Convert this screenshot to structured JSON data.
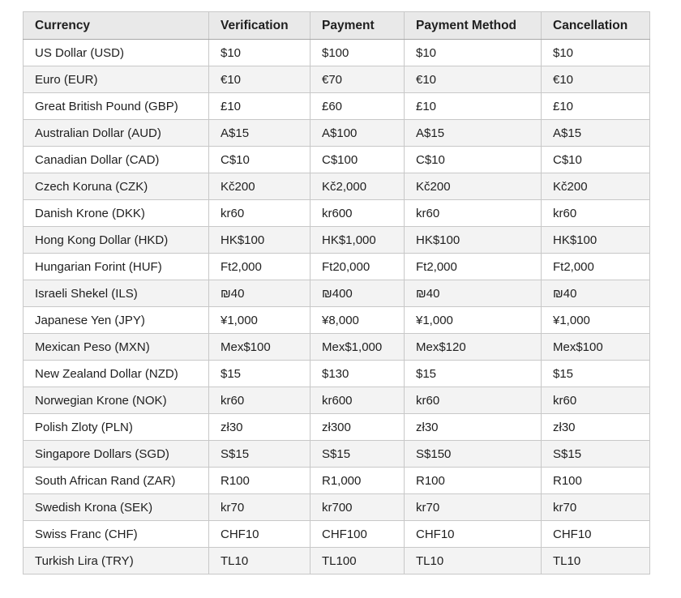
{
  "table": {
    "headers": [
      "Currency",
      "Verification",
      "Payment",
      "Payment Method",
      "Cancellation"
    ],
    "rows": [
      [
        "US Dollar (USD)",
        "$10",
        "$100",
        "$10",
        "$10"
      ],
      [
        "Euro (EUR)",
        "€10",
        "€70",
        "€10",
        "€10"
      ],
      [
        "Great British Pound (GBP)",
        "£10",
        "£60",
        "£10",
        "£10"
      ],
      [
        "Australian Dollar (AUD)",
        "A$15",
        "A$100",
        "A$15",
        "A$15"
      ],
      [
        "Canadian Dollar (CAD)",
        "C$10",
        "C$100",
        "C$10",
        "C$10"
      ],
      [
        "Czech Koruna (CZK)",
        "Kč200",
        "Kč2,000",
        "Kč200",
        "Kč200"
      ],
      [
        "Danish Krone (DKK)",
        "kr60",
        "kr600",
        "kr60",
        "kr60"
      ],
      [
        "Hong Kong Dollar (HKD)",
        "HK$100",
        "HK$1,000",
        "HK$100",
        "HK$100"
      ],
      [
        "Hungarian Forint (HUF)",
        "Ft2,000",
        "Ft20,000",
        "Ft2,000",
        "Ft2,000"
      ],
      [
        "Israeli Shekel (ILS)",
        "₪40",
        "₪400",
        "₪40",
        "₪40"
      ],
      [
        "Japanese Yen (JPY)",
        "¥1,000",
        "¥8,000",
        "¥1,000",
        "¥1,000"
      ],
      [
        "Mexican Peso (MXN)",
        "Mex$100",
        "Mex$1,000",
        "Mex$120",
        "Mex$100"
      ],
      [
        "New Zealand Dollar (NZD)",
        "$15",
        "$130",
        "$15",
        "$15"
      ],
      [
        "Norwegian Krone (NOK)",
        "kr60",
        "kr600",
        "kr60",
        "kr60"
      ],
      [
        "Polish Zloty (PLN)",
        "zł30",
        "zł300",
        "zł30",
        "zł30"
      ],
      [
        "Singapore Dollars (SGD)",
        "S$15",
        "S$15",
        "S$150",
        "S$15"
      ],
      [
        "South African Rand (ZAR)",
        "R100",
        "R1,000",
        "R100",
        "R100"
      ],
      [
        "Swedish Krona (SEK)",
        "kr70",
        "kr700",
        "kr70",
        "kr70"
      ],
      [
        "Swiss Franc (CHF)",
        "CHF10",
        "CHF100",
        "CHF10",
        "CHF10"
      ],
      [
        "Turkish Lira (TRY)",
        "TL10",
        "TL100",
        "TL10",
        "TL10"
      ]
    ]
  }
}
